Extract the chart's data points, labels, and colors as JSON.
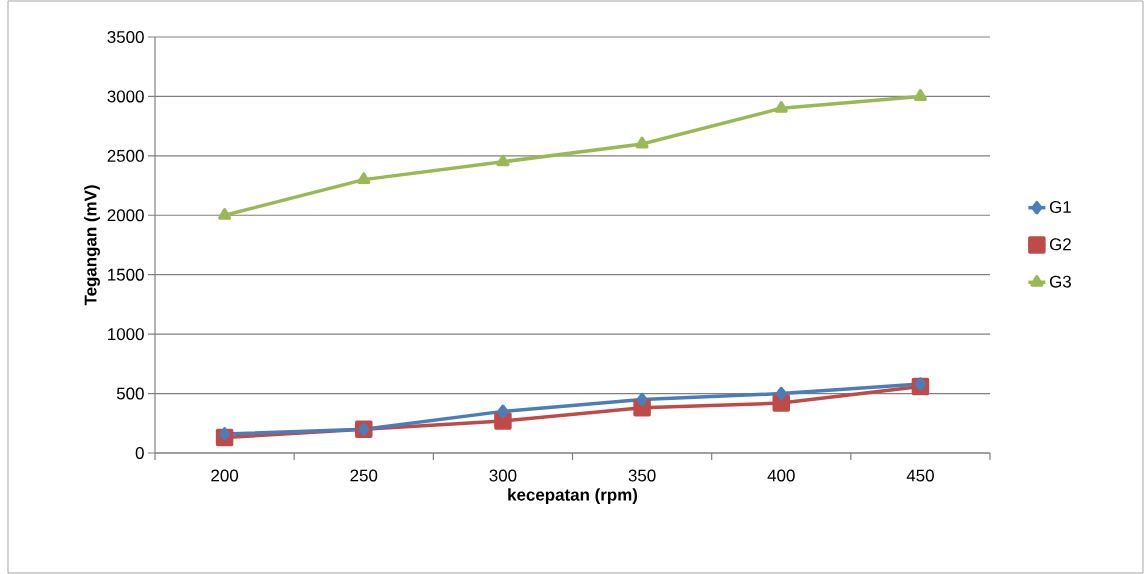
{
  "chart_data": {
    "type": "line",
    "xlabel": "kecepatan (rpm)",
    "ylabel": "Tegangan (mV)",
    "categories": [
      "200",
      "250",
      "300",
      "350",
      "400",
      "450"
    ],
    "ylim": [
      0,
      3500
    ],
    "yticks": [
      0,
      500,
      1000,
      1500,
      2000,
      2500,
      3000,
      3500
    ],
    "grid": "y",
    "legend": "right",
    "series": [
      {
        "name": "G1",
        "color": "#4a7ebb",
        "marker": "diamond",
        "values": [
          160,
          200,
          350,
          450,
          500,
          580
        ]
      },
      {
        "name": "G2",
        "color": "#be4b48",
        "marker": "square",
        "values": [
          130,
          200,
          270,
          380,
          420,
          560
        ]
      },
      {
        "name": "G3",
        "color": "#98b954",
        "marker": "triangle",
        "values": [
          2000,
          2300,
          2450,
          2600,
          2900,
          3000
        ]
      }
    ]
  }
}
